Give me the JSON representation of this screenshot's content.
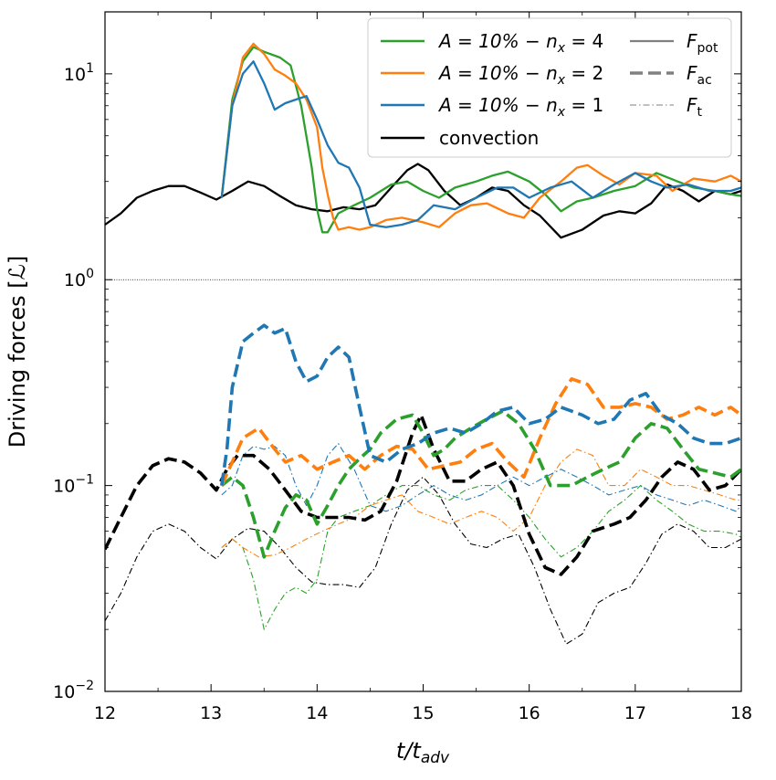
{
  "chart_data": {
    "type": "line",
    "title": "",
    "xlabel": "t/t",
    "xlabel_sub": "adv",
    "ylabel": "Driving forces [",
    "ylabel_symbol": "ℒ",
    "ylabel_close": "]",
    "xlim": [
      12,
      18
    ],
    "ylim": [
      0.01,
      20
    ],
    "yscale": "log",
    "grid": false,
    "reference_line_y": 1,
    "x_ticks": [
      12,
      13,
      14,
      15,
      16,
      17,
      18
    ],
    "y_ticks": [
      {
        "value": 10,
        "base": "10",
        "exp": "1"
      },
      {
        "value": 1,
        "base": "10",
        "exp": "0"
      },
      {
        "value": 0.1,
        "base": "10",
        "exp": "−1"
      },
      {
        "value": 0.01,
        "base": "10",
        "exp": "−2"
      }
    ],
    "legend_placement": "top-right",
    "legend": {
      "runs": [
        {
          "key": "nx4",
          "text": "A = 10% − n",
          "sub": "x",
          "tail": " = 4",
          "color": "#2ca02c"
        },
        {
          "key": "nx2",
          "text": "A = 10% − n",
          "sub": "x",
          "tail": " = 2",
          "color": "#ff7f0e"
        },
        {
          "key": "nx1",
          "text": "A = 10% − n",
          "sub": "x",
          "tail": " = 1",
          "color": "#1f77b4"
        },
        {
          "key": "conv",
          "text": "convection",
          "sub": "",
          "tail": "",
          "color": "#000000"
        }
      ],
      "styles": [
        {
          "key": "pot",
          "text": "F",
          "sub": "pot",
          "dash": "solid"
        },
        {
          "key": "ac",
          "text": "F",
          "sub": "ac",
          "dash": "dashed"
        },
        {
          "key": "t",
          "text": "F",
          "sub": "t",
          "dash": "dashdot"
        }
      ]
    },
    "series": [
      {
        "name": "convection F_pot",
        "color": "#000000",
        "style": "solid",
        "x": [
          12.0,
          12.15,
          12.3,
          12.45,
          12.6,
          12.75,
          12.9,
          13.05,
          13.2,
          13.35,
          13.5,
          13.65,
          13.8,
          13.95,
          14.1,
          14.25,
          14.4,
          14.55,
          14.7,
          14.85,
          14.95,
          15.05,
          15.2,
          15.35,
          15.5,
          15.65,
          15.8,
          15.95,
          16.1,
          16.3,
          16.5,
          16.7,
          16.85,
          17.0,
          17.15,
          17.3,
          17.45,
          17.6,
          17.75,
          17.9,
          18.0
        ],
        "y": [
          1.85,
          2.1,
          2.5,
          2.7,
          2.85,
          2.85,
          2.65,
          2.45,
          2.7,
          3.0,
          2.85,
          2.55,
          2.3,
          2.2,
          2.15,
          2.25,
          2.2,
          2.3,
          2.8,
          3.4,
          3.65,
          3.4,
          2.7,
          2.3,
          2.5,
          2.8,
          2.7,
          2.3,
          2.05,
          1.6,
          1.75,
          2.05,
          2.15,
          2.1,
          2.35,
          2.9,
          2.7,
          2.4,
          2.7,
          2.6,
          2.7
        ]
      },
      {
        "name": "nx4 F_pot",
        "color": "#2ca02c",
        "style": "solid",
        "x": [
          13.1,
          13.2,
          13.3,
          13.4,
          13.5,
          13.65,
          13.75,
          13.85,
          13.95,
          14.0,
          14.05,
          14.1,
          14.2,
          14.35,
          14.5,
          14.7,
          14.85,
          15.0,
          15.15,
          15.3,
          15.5,
          15.65,
          15.8,
          16.0,
          16.15,
          16.3,
          16.45,
          16.6,
          16.8,
          17.0,
          17.2,
          17.4,
          17.55,
          17.75,
          17.9,
          18.0
        ],
        "y": [
          2.5,
          7.5,
          11.5,
          13.5,
          12.8,
          12.0,
          11.0,
          7.0,
          3.5,
          2.2,
          1.7,
          1.7,
          2.1,
          2.3,
          2.5,
          2.9,
          3.0,
          2.7,
          2.5,
          2.8,
          3.0,
          3.2,
          3.35,
          3.0,
          2.6,
          2.15,
          2.4,
          2.5,
          2.7,
          2.85,
          3.3,
          3.0,
          2.8,
          2.7,
          2.6,
          2.55
        ]
      },
      {
        "name": "nx2 F_pot",
        "color": "#ff7f0e",
        "style": "solid",
        "x": [
          13.1,
          13.2,
          13.3,
          13.4,
          13.5,
          13.6,
          13.7,
          13.8,
          13.9,
          14.0,
          14.05,
          14.1,
          14.15,
          14.2,
          14.3,
          14.4,
          14.5,
          14.65,
          14.8,
          15.0,
          15.15,
          15.3,
          15.45,
          15.6,
          15.8,
          15.95,
          16.1,
          16.3,
          16.45,
          16.55,
          16.7,
          16.85,
          17.0,
          17.2,
          17.35,
          17.55,
          17.75,
          17.9,
          18.0
        ],
        "y": [
          2.5,
          7.0,
          12.0,
          14.0,
          12.5,
          10.5,
          9.8,
          9.0,
          7.5,
          5.5,
          3.5,
          2.6,
          2.0,
          1.75,
          1.8,
          1.75,
          1.8,
          1.95,
          2.0,
          1.9,
          1.8,
          2.1,
          2.3,
          2.35,
          2.1,
          2.0,
          2.5,
          3.0,
          3.5,
          3.6,
          3.2,
          2.9,
          3.3,
          3.2,
          2.7,
          3.1,
          3.0,
          3.2,
          3.0
        ]
      },
      {
        "name": "nx1 F_pot",
        "color": "#1f77b4",
        "style": "solid",
        "x": [
          13.1,
          13.2,
          13.3,
          13.4,
          13.5,
          13.6,
          13.7,
          13.8,
          13.9,
          14.0,
          14.1,
          14.2,
          14.3,
          14.4,
          14.5,
          14.65,
          14.8,
          14.95,
          15.1,
          15.3,
          15.5,
          15.7,
          15.85,
          16.0,
          16.2,
          16.4,
          16.6,
          16.8,
          17.0,
          17.15,
          17.3,
          17.5,
          17.7,
          17.9,
          18.0
        ],
        "y": [
          2.5,
          7.0,
          10.0,
          11.5,
          9.0,
          6.7,
          7.2,
          7.5,
          7.8,
          6.0,
          4.5,
          3.7,
          3.5,
          2.8,
          1.85,
          1.8,
          1.85,
          1.95,
          2.3,
          2.2,
          2.5,
          2.8,
          2.8,
          2.5,
          2.8,
          3.0,
          2.5,
          2.9,
          3.3,
          3.0,
          2.8,
          2.9,
          2.7,
          2.7,
          2.8
        ]
      },
      {
        "name": "convection F_ac",
        "color": "#000000",
        "style": "dashed",
        "x": [
          12.0,
          12.15,
          12.3,
          12.45,
          12.6,
          12.75,
          12.9,
          13.05,
          13.15,
          13.25,
          13.4,
          13.55,
          13.7,
          13.85,
          14.0,
          14.15,
          14.3,
          14.45,
          14.6,
          14.75,
          14.9,
          14.98,
          15.1,
          15.25,
          15.4,
          15.55,
          15.7,
          15.85,
          16.0,
          16.15,
          16.3,
          16.45,
          16.6,
          16.8,
          16.95,
          17.1,
          17.25,
          17.4,
          17.55,
          17.7,
          17.85,
          18.0
        ],
        "y": [
          0.049,
          0.07,
          0.1,
          0.125,
          0.135,
          0.13,
          0.115,
          0.095,
          0.12,
          0.14,
          0.14,
          0.12,
          0.095,
          0.075,
          0.07,
          0.07,
          0.07,
          0.068,
          0.075,
          0.105,
          0.18,
          0.22,
          0.15,
          0.105,
          0.105,
          0.12,
          0.13,
          0.1,
          0.058,
          0.04,
          0.037,
          0.045,
          0.06,
          0.065,
          0.07,
          0.085,
          0.11,
          0.13,
          0.12,
          0.095,
          0.1,
          0.12
        ]
      },
      {
        "name": "nx4 F_ac",
        "color": "#2ca02c",
        "style": "dashed",
        "x": [
          13.1,
          13.2,
          13.3,
          13.4,
          13.5,
          13.6,
          13.7,
          13.8,
          13.9,
          14.0,
          14.1,
          14.2,
          14.3,
          14.4,
          14.5,
          14.6,
          14.75,
          14.9,
          15.0,
          15.1,
          15.2,
          15.3,
          15.45,
          15.6,
          15.75,
          15.9,
          16.05,
          16.2,
          16.4,
          16.55,
          16.7,
          16.85,
          17.0,
          17.15,
          17.3,
          17.45,
          17.6,
          17.75,
          17.9,
          18.0
        ],
        "y": [
          0.1,
          0.11,
          0.1,
          0.07,
          0.045,
          0.06,
          0.078,
          0.09,
          0.085,
          0.065,
          0.08,
          0.1,
          0.12,
          0.135,
          0.15,
          0.18,
          0.21,
          0.22,
          0.18,
          0.14,
          0.15,
          0.17,
          0.19,
          0.21,
          0.23,
          0.2,
          0.15,
          0.1,
          0.1,
          0.11,
          0.12,
          0.13,
          0.17,
          0.2,
          0.19,
          0.15,
          0.12,
          0.115,
          0.11,
          0.12
        ]
      },
      {
        "name": "nx2 F_ac",
        "color": "#ff7f0e",
        "style": "dashed",
        "x": [
          13.1,
          13.2,
          13.3,
          13.45,
          13.6,
          13.7,
          13.85,
          14.0,
          14.15,
          14.3,
          14.45,
          14.6,
          14.75,
          14.9,
          15.05,
          15.2,
          15.35,
          15.5,
          15.65,
          15.8,
          15.95,
          16.1,
          16.25,
          16.4,
          16.55,
          16.7,
          16.85,
          17.0,
          17.15,
          17.3,
          17.45,
          17.6,
          17.75,
          17.9,
          18.0
        ],
        "y": [
          0.1,
          0.13,
          0.17,
          0.19,
          0.15,
          0.13,
          0.14,
          0.12,
          0.13,
          0.14,
          0.12,
          0.14,
          0.155,
          0.15,
          0.12,
          0.125,
          0.13,
          0.15,
          0.16,
          0.13,
          0.11,
          0.17,
          0.25,
          0.33,
          0.31,
          0.24,
          0.24,
          0.25,
          0.24,
          0.21,
          0.22,
          0.24,
          0.22,
          0.24,
          0.22
        ]
      },
      {
        "name": "nx1 F_ac",
        "color": "#1f77b4",
        "style": "dashed",
        "x": [
          13.1,
          13.15,
          13.2,
          13.3,
          13.4,
          13.5,
          13.6,
          13.7,
          13.8,
          13.9,
          14.0,
          14.1,
          14.2,
          14.3,
          14.4,
          14.5,
          14.65,
          14.8,
          14.95,
          15.1,
          15.25,
          15.4,
          15.55,
          15.7,
          15.85,
          16.0,
          16.15,
          16.3,
          16.5,
          16.65,
          16.8,
          16.95,
          17.1,
          17.25,
          17.4,
          17.55,
          17.7,
          17.85,
          18.0
        ],
        "y": [
          0.1,
          0.15,
          0.3,
          0.5,
          0.55,
          0.6,
          0.55,
          0.58,
          0.4,
          0.32,
          0.34,
          0.42,
          0.47,
          0.42,
          0.24,
          0.14,
          0.13,
          0.15,
          0.16,
          0.18,
          0.19,
          0.18,
          0.2,
          0.23,
          0.24,
          0.2,
          0.21,
          0.24,
          0.22,
          0.2,
          0.21,
          0.26,
          0.28,
          0.22,
          0.2,
          0.17,
          0.16,
          0.16,
          0.17
        ]
      },
      {
        "name": "convection F_t",
        "color": "#000000",
        "style": "dashdot",
        "x": [
          12.0,
          12.15,
          12.3,
          12.45,
          12.6,
          12.75,
          12.9,
          13.05,
          13.2,
          13.35,
          13.5,
          13.65,
          13.8,
          13.95,
          14.1,
          14.25,
          14.4,
          14.55,
          14.7,
          14.85,
          15.0,
          15.15,
          15.3,
          15.45,
          15.6,
          15.75,
          15.9,
          16.05,
          16.2,
          16.35,
          16.5,
          16.65,
          16.8,
          16.95,
          17.1,
          17.25,
          17.4,
          17.55,
          17.7,
          17.85,
          18.0
        ],
        "y": [
          0.022,
          0.03,
          0.045,
          0.06,
          0.065,
          0.06,
          0.05,
          0.044,
          0.055,
          0.062,
          0.06,
          0.05,
          0.04,
          0.034,
          0.033,
          0.033,
          0.032,
          0.04,
          0.065,
          0.095,
          0.11,
          0.09,
          0.065,
          0.052,
          0.05,
          0.055,
          0.058,
          0.04,
          0.025,
          0.017,
          0.019,
          0.027,
          0.03,
          0.032,
          0.042,
          0.058,
          0.065,
          0.06,
          0.05,
          0.05,
          0.055
        ]
      },
      {
        "name": "nx4 F_t",
        "color": "#2ca02c",
        "style": "dashdot",
        "x": [
          13.1,
          13.2,
          13.3,
          13.4,
          13.5,
          13.6,
          13.7,
          13.8,
          13.9,
          14.0,
          14.1,
          14.2,
          14.35,
          14.5,
          14.65,
          14.8,
          14.95,
          15.1,
          15.25,
          15.4,
          15.55,
          15.7,
          15.85,
          16.0,
          16.15,
          16.3,
          16.45,
          16.6,
          16.75,
          16.9,
          17.05,
          17.2,
          17.35,
          17.5,
          17.65,
          17.8,
          17.95,
          18.0
        ],
        "y": [
          0.05,
          0.055,
          0.05,
          0.035,
          0.02,
          0.025,
          0.03,
          0.032,
          0.03,
          0.035,
          0.06,
          0.07,
          0.075,
          0.08,
          0.09,
          0.1,
          0.1,
          0.09,
          0.085,
          0.095,
          0.1,
          0.1,
          0.085,
          0.07,
          0.055,
          0.045,
          0.05,
          0.06,
          0.075,
          0.085,
          0.1,
          0.085,
          0.075,
          0.065,
          0.06,
          0.06,
          0.058,
          0.056
        ]
      },
      {
        "name": "nx2 F_t",
        "color": "#ff7f0e",
        "style": "dashdot",
        "x": [
          13.1,
          13.2,
          13.3,
          13.45,
          13.6,
          13.75,
          13.9,
          14.05,
          14.2,
          14.35,
          14.5,
          14.65,
          14.8,
          14.95,
          15.1,
          15.25,
          15.4,
          15.55,
          15.7,
          15.85,
          16.0,
          16.15,
          16.3,
          16.45,
          16.6,
          16.75,
          16.9,
          17.05,
          17.2,
          17.35,
          17.5,
          17.65,
          17.8,
          17.95,
          18.0
        ],
        "y": [
          0.05,
          0.055,
          0.05,
          0.045,
          0.046,
          0.05,
          0.055,
          0.06,
          0.065,
          0.07,
          0.08,
          0.085,
          0.09,
          0.075,
          0.07,
          0.065,
          0.07,
          0.075,
          0.07,
          0.06,
          0.07,
          0.1,
          0.13,
          0.15,
          0.14,
          0.1,
          0.1,
          0.12,
          0.11,
          0.1,
          0.1,
          0.095,
          0.09,
          0.085,
          0.085
        ]
      },
      {
        "name": "nx1 F_t",
        "color": "#1f77b4",
        "style": "dashdot",
        "x": [
          13.1,
          13.2,
          13.3,
          13.4,
          13.5,
          13.6,
          13.7,
          13.8,
          13.9,
          14.0,
          14.1,
          14.2,
          14.35,
          14.5,
          14.65,
          14.8,
          14.95,
          15.1,
          15.25,
          15.4,
          15.55,
          15.7,
          15.85,
          16.0,
          16.15,
          16.3,
          16.45,
          16.6,
          16.75,
          16.9,
          17.05,
          17.2,
          17.35,
          17.5,
          17.65,
          17.8,
          17.95,
          18.0
        ],
        "y": [
          0.09,
          0.1,
          0.14,
          0.155,
          0.15,
          0.155,
          0.14,
          0.1,
          0.08,
          0.1,
          0.14,
          0.16,
          0.12,
          0.08,
          0.075,
          0.08,
          0.09,
          0.1,
          0.09,
          0.085,
          0.09,
          0.1,
          0.11,
          0.1,
          0.11,
          0.12,
          0.11,
          0.1,
          0.09,
          0.095,
          0.1,
          0.09,
          0.085,
          0.08,
          0.085,
          0.08,
          0.075,
          0.08
        ]
      }
    ]
  }
}
